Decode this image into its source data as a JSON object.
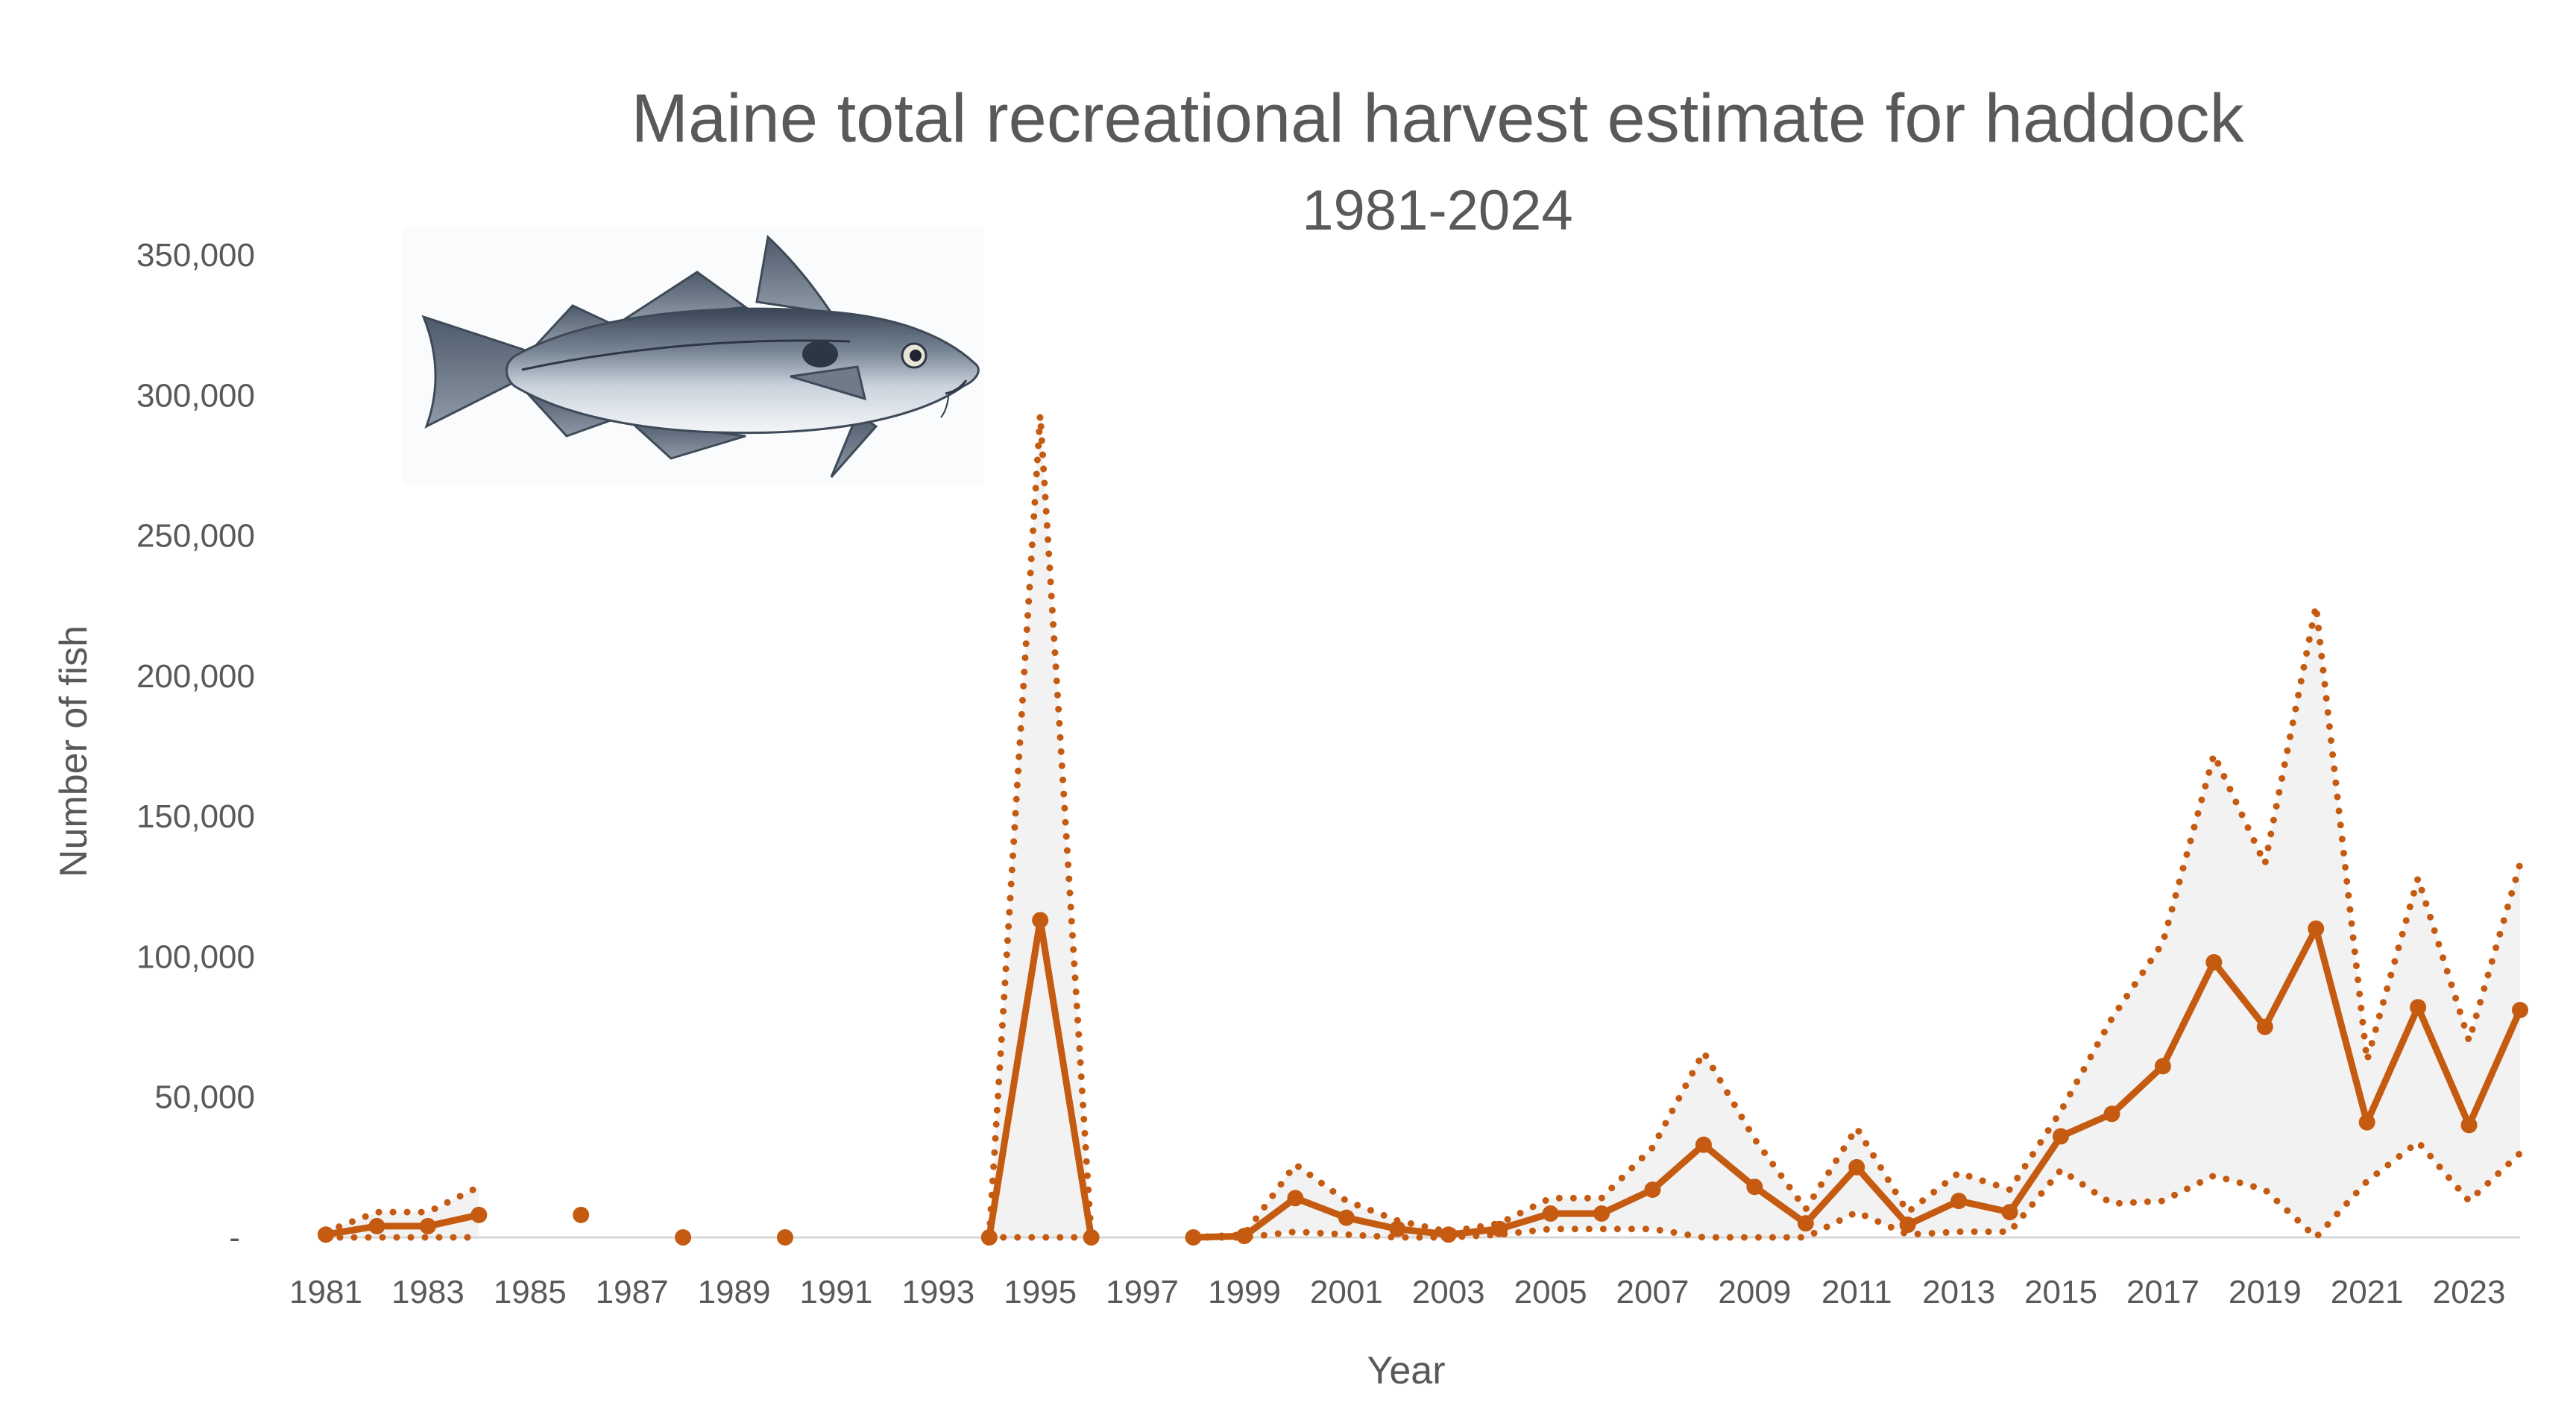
{
  "colors": {
    "series": "#C55A11",
    "band_fill": "#F2F2F2",
    "axis": "#D9D9D9",
    "text": "#595959"
  },
  "chart_data": {
    "type": "line",
    "title": "Maine total recreational harvest estimate for haddock",
    "subtitle": "1981-2024",
    "xlabel": "Year",
    "ylabel": "Number of fish",
    "ylim": [
      0,
      350000
    ],
    "yticks": [
      0,
      50000,
      100000,
      150000,
      200000,
      250000,
      300000,
      350000
    ],
    "ytick_labels": [
      "-",
      "50,000",
      "100,000",
      "150,000",
      "200,000",
      "250,000",
      "300,000",
      "350,000"
    ],
    "xlim": [
      1981,
      2024
    ],
    "xtick_labels": [
      "1981",
      "1983",
      "1985",
      "1987",
      "1989",
      "1991",
      "1993",
      "1995",
      "1997",
      "1999",
      "2001",
      "2003",
      "2005",
      "2007",
      "2009",
      "2011",
      "2013",
      "2015",
      "2017",
      "2019",
      "2021",
      "2023"
    ],
    "grid": false,
    "legend": "none",
    "image": "haddock-illustration",
    "x": [
      1981,
      1982,
      1983,
      1984,
      1985,
      1986,
      1987,
      1988,
      1989,
      1990,
      1991,
      1992,
      1993,
      1994,
      1995,
      1996,
      1997,
      1998,
      1999,
      2000,
      2001,
      2002,
      2003,
      2004,
      2005,
      2006,
      2007,
      2008,
      2009,
      2010,
      2011,
      2012,
      2013,
      2014,
      2015,
      2016,
      2017,
      2018,
      2019,
      2020,
      2021,
      2022,
      2023,
      2024
    ],
    "series": [
      {
        "role": "estimate",
        "style": "solid-with-markers",
        "values": [
          1000,
          4000,
          4000,
          8000,
          null,
          8000,
          null,
          0,
          null,
          0,
          null,
          null,
          null,
          0,
          113000,
          0,
          null,
          0,
          500,
          14000,
          7000,
          3000,
          1000,
          3000,
          8500,
          8500,
          17000,
          33000,
          18000,
          5000,
          25000,
          4500,
          13000,
          9000,
          36000,
          44000,
          61000,
          98000,
          75000,
          110000,
          41000,
          82000,
          40000,
          81000
        ]
      },
      {
        "role": "upper-bound",
        "style": "dotted",
        "values": [
          2000,
          9000,
          9000,
          18000,
          null,
          null,
          null,
          null,
          null,
          null,
          null,
          null,
          null,
          0,
          293000,
          0,
          null,
          0,
          1000,
          26000,
          13000,
          6000,
          2000,
          5000,
          14000,
          14000,
          32000,
          66000,
          35000,
          10000,
          39000,
          9000,
          23000,
          17000,
          45000,
          78000,
          105000,
          172000,
          133000,
          225000,
          63000,
          128000,
          70000,
          133000
        ]
      },
      {
        "role": "lower-bound",
        "style": "dotted",
        "values": [
          0,
          0,
          0,
          0,
          null,
          null,
          null,
          null,
          null,
          null,
          null,
          null,
          null,
          0,
          0,
          0,
          null,
          0,
          0,
          2000,
          1000,
          0,
          0,
          1000,
          3000,
          3000,
          3000,
          0,
          0,
          0,
          9000,
          1000,
          2000,
          2000,
          24000,
          12000,
          13000,
          22000,
          17000,
          0,
          20000,
          34000,
          13000,
          30000
        ]
      }
    ]
  }
}
